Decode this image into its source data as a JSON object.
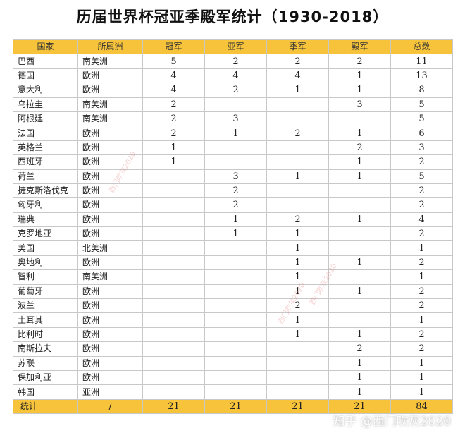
{
  "title": "历届世界杯冠亚季殿军统计（1930-2018）",
  "colors": {
    "header_bg": "#f6c33a",
    "border": "#c8c8c8"
  },
  "table": {
    "headers": [
      "国家",
      "所属洲",
      "冠军",
      "亚军",
      "季军",
      "殿军",
      "总数"
    ],
    "rows": [
      [
        "巴西",
        "南美洲",
        "5",
        "2",
        "2",
        "2",
        "11"
      ],
      [
        "德国",
        "欧洲",
        "4",
        "4",
        "4",
        "1",
        "13"
      ],
      [
        "意大利",
        "欧洲",
        "4",
        "2",
        "1",
        "1",
        "8"
      ],
      [
        "乌拉圭",
        "南美洲",
        "2",
        "",
        "",
        "3",
        "5"
      ],
      [
        "阿根廷",
        "南美洲",
        "2",
        "3",
        "",
        "",
        "5"
      ],
      [
        "法国",
        "欧洲",
        "2",
        "1",
        "2",
        "1",
        "6"
      ],
      [
        "英格兰",
        "欧洲",
        "1",
        "",
        "",
        "2",
        "3"
      ],
      [
        "西班牙",
        "欧洲",
        "1",
        "",
        "",
        "1",
        "2"
      ],
      [
        "荷兰",
        "欧洲",
        "",
        "3",
        "1",
        "1",
        "5"
      ],
      [
        "捷克斯洛伐克",
        "欧洲",
        "",
        "2",
        "",
        "",
        "2"
      ],
      [
        "匈牙利",
        "欧洲",
        "",
        "2",
        "",
        "",
        "2"
      ],
      [
        "瑞典",
        "欧洲",
        "",
        "1",
        "2",
        "1",
        "4"
      ],
      [
        "克罗地亚",
        "欧洲",
        "",
        "1",
        "1",
        "",
        "2"
      ],
      [
        "美国",
        "北美洲",
        "",
        "",
        "1",
        "",
        "1"
      ],
      [
        "奥地利",
        "欧洲",
        "",
        "",
        "1",
        "1",
        "2"
      ],
      [
        "智利",
        "南美洲",
        "",
        "",
        "1",
        "",
        "1"
      ],
      [
        "葡萄牙",
        "欧洲",
        "",
        "",
        "1",
        "1",
        "2"
      ],
      [
        "波兰",
        "欧洲",
        "",
        "",
        "2",
        "",
        "2"
      ],
      [
        "土耳其",
        "欧洲",
        "",
        "",
        "1",
        "",
        "1"
      ],
      [
        "比利时",
        "欧洲",
        "",
        "",
        "1",
        "1",
        "2"
      ],
      [
        "南斯拉夫",
        "欧洲",
        "",
        "",
        "",
        "2",
        "2"
      ],
      [
        "苏联",
        "欧洲",
        "",
        "",
        "",
        "1",
        "1"
      ],
      [
        "保加利亚",
        "欧洲",
        "",
        "",
        "",
        "1",
        "1"
      ],
      [
        "韩国",
        "亚洲",
        "",
        "",
        "",
        "1",
        "1"
      ]
    ],
    "total": [
      "统计",
      "/",
      "21",
      "21",
      "21",
      "21",
      "84"
    ]
  },
  "watermarks": [
    "西门吹灰2020",
    "西门吹灰2020",
    "西门吹灰2020"
  ],
  "brand": "知乎 @西门吹灰2020"
}
